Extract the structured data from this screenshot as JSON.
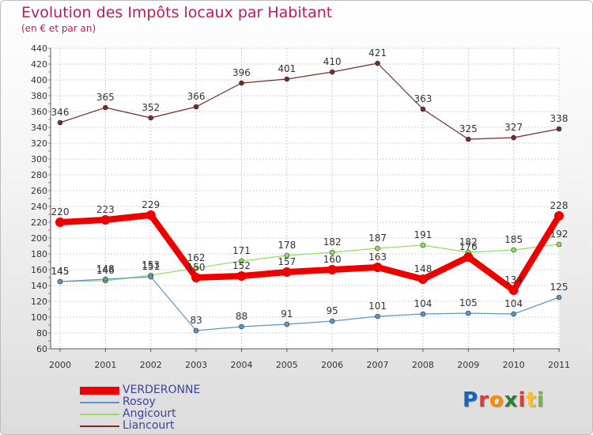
{
  "title": "Evolution des Impôts locaux par Habitant",
  "subtitle": "(en € et par an)",
  "logo": {
    "text": "Proxiti",
    "colors": [
      "#1565c0",
      "#e53935",
      "#fb8c00",
      "#2e7d32",
      "#e53935",
      "#fbc02d",
      "#7cb342"
    ]
  },
  "chart_data": {
    "type": "line",
    "title": "Evolution des Impôts locaux par Habitant",
    "subtitle": "(en € et par an)",
    "xlabel": "",
    "ylabel": "",
    "ylim": [
      60,
      440
    ],
    "yticks": [
      60,
      80,
      100,
      120,
      140,
      160,
      180,
      200,
      220,
      240,
      260,
      280,
      300,
      320,
      340,
      360,
      380,
      400,
      420,
      440
    ],
    "x": [
      "2000",
      "2001",
      "2002",
      "2003",
      "2004",
      "2005",
      "2006",
      "2007",
      "2008",
      "2009",
      "2010",
      "2011"
    ],
    "series": [
      {
        "name": "VERDERONNE",
        "color": "#ee0000",
        "width": 8,
        "marker": 6,
        "values": [
          220,
          223,
          229,
          150,
          152,
          157,
          160,
          163,
          148,
          176,
          134,
          228
        ],
        "labels": [
          "220",
          "223",
          "229",
          "150",
          "152",
          "157",
          "160",
          "163",
          "148",
          "176",
          "134",
          "228"
        ]
      },
      {
        "name": "Rosoy",
        "color": "#5b95c8",
        "width": 1.2,
        "marker": 3,
        "values": [
          145,
          148,
          151,
          83,
          88,
          91,
          95,
          101,
          104,
          105,
          104,
          125
        ],
        "labels": [
          "145",
          "148",
          "151",
          "83",
          "88",
          "91",
          "95",
          "101",
          "104",
          "105",
          "104",
          "125"
        ]
      },
      {
        "name": "Angicourt",
        "color": "#90e060",
        "width": 1.2,
        "marker": 3,
        "values": [
          145,
          146,
          153,
          162,
          171,
          178,
          182,
          187,
          191,
          182,
          185,
          192
        ],
        "labels": [
          "145",
          "146",
          "153",
          "162",
          "171",
          "178",
          "182",
          "187",
          "191",
          "182",
          "185",
          "192"
        ]
      },
      {
        "name": "Liancourt",
        "color": "#7a2a2a",
        "width": 1.2,
        "marker": 3,
        "values": [
          346,
          365,
          352,
          366,
          396,
          401,
          410,
          421,
          363,
          325,
          327,
          338
        ],
        "labels": [
          "346",
          "365",
          "352",
          "366",
          "396",
          "401",
          "410",
          "421",
          "363",
          "325",
          "327",
          "338"
        ]
      }
    ],
    "legend_position": "bottom-left"
  }
}
